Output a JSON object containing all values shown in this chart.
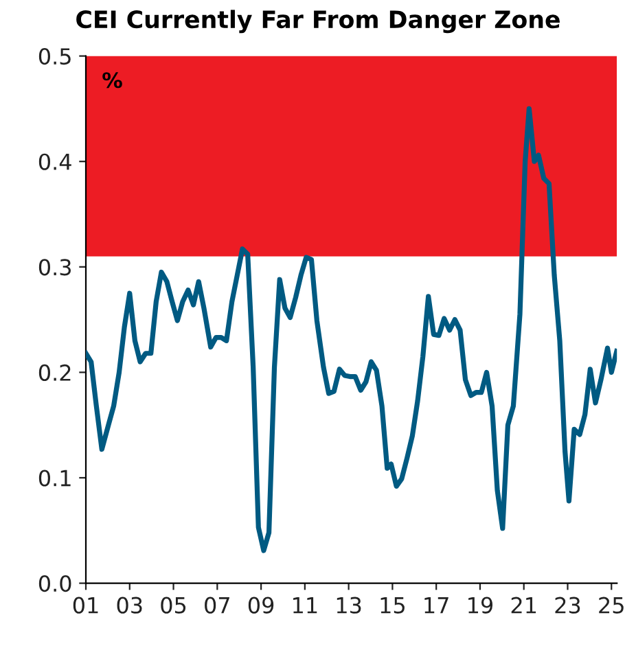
{
  "chart_data": {
    "type": "line",
    "title": "CEI Currently Far From Danger Zone",
    "annotations": [
      "%"
    ],
    "x": [
      2001.0,
      2001.24,
      2001.48,
      2001.73,
      2002.03,
      2002.27,
      2002.52,
      2002.76,
      2003.0,
      2003.24,
      2003.48,
      2003.73,
      2003.97,
      2004.21,
      2004.45,
      2004.7,
      2004.94,
      2005.18,
      2005.42,
      2005.67,
      2005.91,
      2006.15,
      2006.39,
      2006.7,
      2006.94,
      2007.18,
      2007.42,
      2007.67,
      2007.91,
      2008.15,
      2008.39,
      2008.64,
      2008.88,
      2009.12,
      2009.36,
      2009.61,
      2009.85,
      2010.09,
      2010.33,
      2010.58,
      2010.82,
      2011.06,
      2011.3,
      2011.55,
      2011.85,
      2012.09,
      2012.33,
      2012.58,
      2012.82,
      2013.06,
      2013.3,
      2013.55,
      2013.79,
      2014.03,
      2014.27,
      2014.52,
      2014.76,
      2014.94,
      2015.18,
      2015.42,
      2015.67,
      2015.91,
      2016.15,
      2016.39,
      2016.64,
      2016.88,
      2017.12,
      2017.36,
      2017.61,
      2017.85,
      2018.09,
      2018.33,
      2018.58,
      2018.82,
      2019.06,
      2019.3,
      2019.55,
      2019.79,
      2020.03,
      2020.27,
      2020.52,
      2020.82,
      2021.06,
      2021.24,
      2021.48,
      2021.67,
      2021.91,
      2022.15,
      2022.39,
      2022.64,
      2022.88,
      2023.06,
      2023.3,
      2023.55,
      2023.79,
      2024.03,
      2024.27,
      2024.52,
      2024.82,
      2025.0,
      2025.24
    ],
    "series": [
      {
        "color": "#005a82",
        "values": [
          0.218,
          0.21,
          0.168,
          0.127,
          0.15,
          0.168,
          0.2,
          0.243,
          0.275,
          0.23,
          0.21,
          0.218,
          0.218,
          0.267,
          0.295,
          0.286,
          0.267,
          0.249,
          0.267,
          0.278,
          0.264,
          0.286,
          0.261,
          0.224,
          0.233,
          0.233,
          0.23,
          0.267,
          0.292,
          0.317,
          0.312,
          0.205,
          0.053,
          0.031,
          0.048,
          0.205,
          0.288,
          0.261,
          0.252,
          0.271,
          0.292,
          0.309,
          0.307,
          0.249,
          0.205,
          0.18,
          0.182,
          0.203,
          0.197,
          0.196,
          0.196,
          0.183,
          0.191,
          0.21,
          0.202,
          0.168,
          0.109,
          0.113,
          0.092,
          0.099,
          0.119,
          0.14,
          0.173,
          0.215,
          0.272,
          0.236,
          0.235,
          0.251,
          0.24,
          0.25,
          0.24,
          0.193,
          0.178,
          0.181,
          0.181,
          0.2,
          0.168,
          0.088,
          0.052,
          0.15,
          0.168,
          0.255,
          0.4,
          0.45,
          0.4,
          0.406,
          0.384,
          0.379,
          0.292,
          0.23,
          0.125,
          0.078,
          0.146,
          0.141,
          0.16,
          0.203,
          0.171,
          0.193,
          0.223,
          0.2,
          0.22
        ]
      }
    ],
    "bands": [
      {
        "axis": "y",
        "from": 0.31,
        "to": 0.5,
        "color": "#ed1c24"
      }
    ],
    "xlim": [
      2001,
      2025.25
    ],
    "xticks": [
      {
        "value": 2001,
        "label": "01"
      },
      {
        "value": 2003,
        "label": "03"
      },
      {
        "value": 2005,
        "label": "05"
      },
      {
        "value": 2007,
        "label": "07"
      },
      {
        "value": 2009,
        "label": "09"
      },
      {
        "value": 2011,
        "label": "11"
      },
      {
        "value": 2013,
        "label": "13"
      },
      {
        "value": 2015,
        "label": "15"
      },
      {
        "value": 2017,
        "label": "17"
      },
      {
        "value": 2019,
        "label": "19"
      },
      {
        "value": 2021,
        "label": "21"
      },
      {
        "value": 2023,
        "label": "23"
      },
      {
        "value": 2025,
        "label": "25"
      }
    ],
    "ylim": [
      0,
      0.5
    ],
    "yticks": [
      {
        "value": 0,
        "label": "0.0"
      },
      0.1,
      0.2,
      0.3,
      0.4,
      0.5
    ],
    "grid": false,
    "legend": false
  }
}
